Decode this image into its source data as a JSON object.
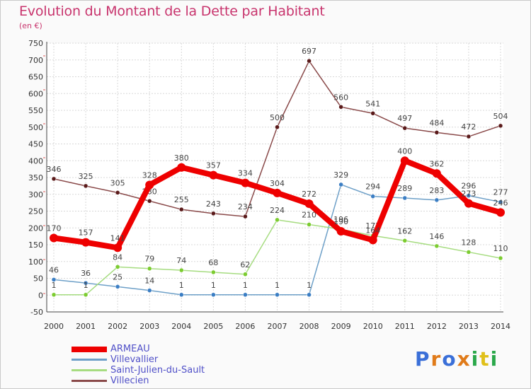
{
  "title": "Evolution du Montant de la Dette par Habitant",
  "unit": "(en €)",
  "logo": {
    "text": "Proxiti",
    "colors": [
      "#3a6fd8",
      "#e07b1a",
      "#3a6fd8",
      "#e07b1a",
      "#2aa84a",
      "#e0c01a",
      "#2aa84a"
    ]
  },
  "chart_data": {
    "type": "line",
    "title": "Evolution du Montant de la Dette par Habitant",
    "subtitle": "(en €)",
    "categories": [
      "2000",
      "2001",
      "2002",
      "2003",
      "2004",
      "2005",
      "2006",
      "2007",
      "2008",
      "2009",
      "2010",
      "2011",
      "2012",
      "2013",
      "2014"
    ],
    "ylim": [
      -50,
      750
    ],
    "yticks": [
      -50,
      0,
      50,
      100,
      150,
      200,
      250,
      300,
      350,
      400,
      450,
      500,
      550,
      600,
      650,
      700,
      750
    ],
    "grid": true,
    "legend": "bottom-left",
    "series": [
      {
        "name": "ARMEAU",
        "color": "#ee0000",
        "dot": "#ee0000",
        "width": 8,
        "values": [
          170,
          157,
          141,
          328,
          380,
          357,
          334,
          304,
          272,
          190,
          164,
          400,
          362,
          273,
          246
        ]
      },
      {
        "name": "Villevallier",
        "color": "#6ea0c8",
        "dot": "#3b7ec4",
        "width": 1.5,
        "values": [
          46,
          36,
          25,
          14,
          1,
          1,
          1,
          1,
          1,
          329,
          294,
          289,
          283,
          296,
          277
        ]
      },
      {
        "name": "Saint-Julien-du-Sault",
        "color": "#a6dc80",
        "dot": "#7ccc30",
        "width": 1.5,
        "values": [
          1,
          1,
          84,
          79,
          74,
          68,
          62,
          224,
          210,
          196,
          177,
          162,
          146,
          128,
          110
        ]
      },
      {
        "name": "Villecien",
        "color": "#8a4a4a",
        "dot": "#5a1a1a",
        "width": 1.5,
        "values": [
          346,
          325,
          305,
          280,
          255,
          243,
          234,
          500,
          697,
          560,
          541,
          497,
          484,
          472,
          504
        ]
      }
    ]
  }
}
